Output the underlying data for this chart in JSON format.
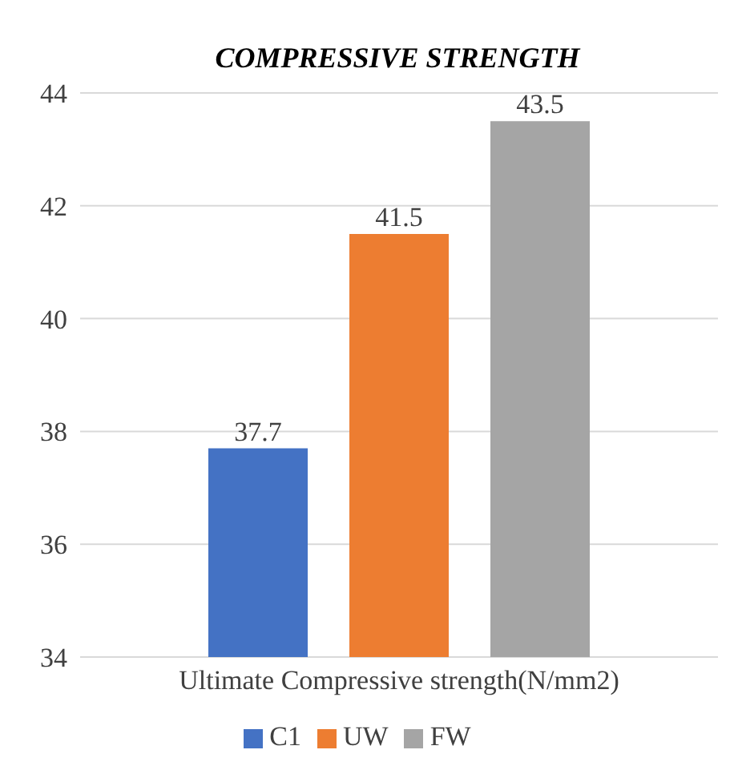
{
  "chart_data": {
    "type": "bar",
    "title": "COMPRESSIVE STRENGTH",
    "categories": [
      "Ultimate Compressive strength(N/mm2)"
    ],
    "series": [
      {
        "name": "C1",
        "color": "#4472c4",
        "values": [
          37.7
        ]
      },
      {
        "name": "UW",
        "color": "#ed7d31",
        "values": [
          41.5
        ]
      },
      {
        "name": "FW",
        "color": "#a5a5a5",
        "values": [
          43.5
        ]
      }
    ],
    "ylim": [
      34,
      44
    ],
    "yticks": [
      34,
      36,
      38,
      40,
      42,
      44
    ],
    "grid": "y",
    "legend": "bottom",
    "data_labels": true
  }
}
